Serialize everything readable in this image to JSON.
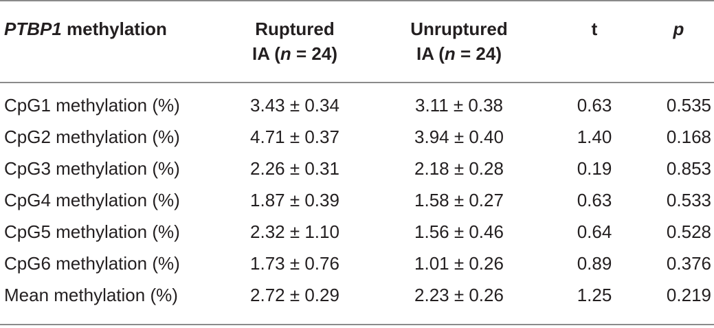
{
  "header": {
    "variable_gene": "PTBP1",
    "variable_suffix": " methylation",
    "ruptured_line1": "Ruptured",
    "ruptured_prefix": "IA (",
    "ruptured_n": "n",
    "ruptured_suffix": " = 24)",
    "unruptured_line1": "Unruptured",
    "unruptured_prefix": "IA (",
    "unruptured_n": "n",
    "unruptured_suffix": " = 24)",
    "t": "t",
    "p": "p"
  },
  "rows": [
    {
      "variable": "CpG1 methylation (%)",
      "ruptured": "3.43 ± 0.34",
      "unruptured": "3.11 ± 0.38",
      "t": "0.63",
      "p": "0.535"
    },
    {
      "variable": "CpG2 methylation (%)",
      "ruptured": "4.71 ± 0.37",
      "unruptured": "3.94 ± 0.40",
      "t": "1.40",
      "p": "0.168"
    },
    {
      "variable": "CpG3 methylation (%)",
      "ruptured": "2.26 ± 0.31",
      "unruptured": "2.18 ± 0.28",
      "t": "0.19",
      "p": "0.853"
    },
    {
      "variable": "CpG4 methylation (%)",
      "ruptured": "1.87 ± 0.39",
      "unruptured": "1.58 ± 0.27",
      "t": "0.63",
      "p": "0.533"
    },
    {
      "variable": "CpG5 methylation (%)",
      "ruptured": "2.32 ± 1.10",
      "unruptured": "1.56 ± 0.46",
      "t": "0.64",
      "p": "0.528"
    },
    {
      "variable": "CpG6 methylation (%)",
      "ruptured": "1.73 ± 0.76",
      "unruptured": "1.01 ± 0.26",
      "t": "0.89",
      "p": "0.376"
    },
    {
      "variable": "Mean methylation (%)",
      "ruptured": "2.72 ± 0.29",
      "unruptured": "2.23 ± 0.26",
      "t": "1.25",
      "p": "0.219"
    }
  ]
}
